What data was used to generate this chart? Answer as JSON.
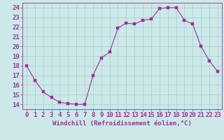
{
  "hours": [
    0,
    1,
    2,
    3,
    4,
    5,
    6,
    7,
    8,
    9,
    10,
    11,
    12,
    13,
    14,
    15,
    16,
    17,
    18,
    19,
    20,
    21,
    22,
    23
  ],
  "values": [
    18.0,
    16.5,
    15.3,
    14.7,
    14.2,
    14.1,
    14.0,
    14.0,
    17.0,
    18.8,
    19.4,
    21.9,
    22.4,
    22.3,
    22.7,
    22.8,
    23.9,
    24.0,
    24.0,
    22.7,
    22.3,
    20.0,
    18.5,
    17.4
  ],
  "line_color": "#993399",
  "marker_color": "#993399",
  "bg_color": "#cce8e8",
  "grid_color": "#aacccc",
  "xlabel": "Windchill (Refroidissement éolien,°C)",
  "ylabel_ticks": [
    14,
    15,
    16,
    17,
    18,
    19,
    20,
    21,
    22,
    23,
    24
  ],
  "ylim": [
    13.5,
    24.5
  ],
  "xlim": [
    -0.5,
    23.5
  ],
  "xlabel_fontsize": 6.5,
  "tick_fontsize": 6.5,
  "marker_size": 2.5
}
